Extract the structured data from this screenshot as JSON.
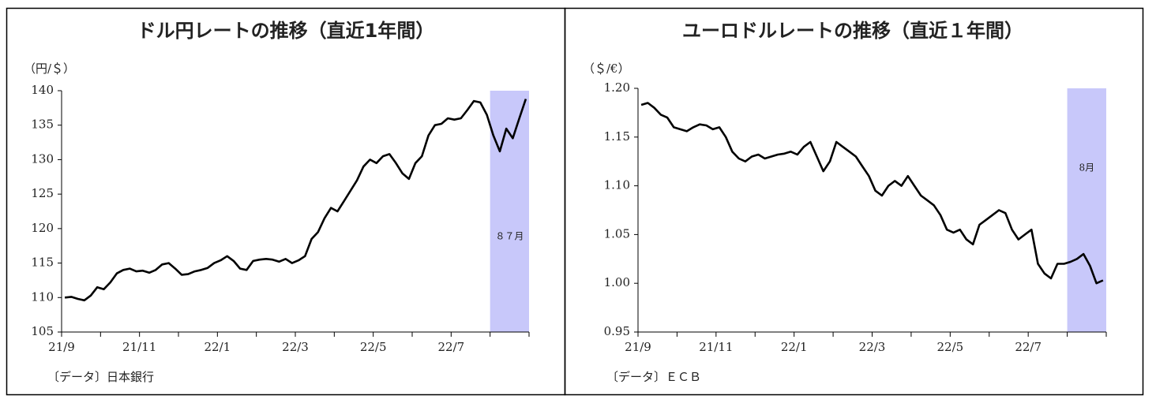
{
  "chart_data": [
    {
      "type": "line",
      "title": "ドル円レートの推移（直近1年間）",
      "ylabel": "（円/＄）",
      "note": "〔データ〕日本銀行",
      "categories": [
        "21/9",
        null,
        null,
        null,
        null,
        null,
        null,
        null,
        null,
        null,
        null,
        null,
        "21/11",
        null,
        null,
        null,
        null,
        null,
        null,
        null,
        null,
        null,
        null,
        null,
        "22/1",
        null,
        null,
        null,
        null,
        null,
        null,
        null,
        null,
        null,
        null,
        null,
        "22/3",
        null,
        null,
        null,
        null,
        null,
        null,
        null,
        null,
        null,
        null,
        null,
        "22/5",
        null,
        null,
        null,
        null,
        null,
        null,
        null,
        null,
        null,
        null,
        null,
        "22/7",
        null,
        null,
        null,
        null,
        null,
        null,
        null,
        null,
        null,
        null,
        null
      ],
      "values": [
        110.0,
        110.1,
        109.8,
        109.6,
        110.3,
        111.5,
        111.2,
        112.2,
        113.5,
        114.0,
        114.2,
        113.8,
        113.9,
        113.6,
        114.0,
        114.8,
        115.0,
        114.2,
        113.3,
        113.4,
        113.8,
        114.0,
        114.3,
        115.0,
        115.4,
        116.0,
        115.3,
        114.2,
        114.0,
        115.3,
        115.5,
        115.6,
        115.5,
        115.2,
        115.6,
        115.0,
        115.4,
        116.0,
        118.5,
        119.5,
        121.5,
        123.0,
        122.5,
        124.0,
        125.5,
        127.0,
        129.0,
        130.0,
        129.5,
        130.5,
        130.8,
        129.5,
        128.0,
        127.2,
        129.5,
        130.5,
        133.5,
        135.0,
        135.2,
        136.0,
        135.8,
        136.0,
        137.2,
        138.5,
        138.3,
        136.5,
        133.5,
        131.2,
        134.5,
        133.1,
        136.0,
        138.8
      ],
      "color": "#000000",
      "ylim": [
        105,
        140
      ],
      "yticks": [
        105,
        110,
        115,
        120,
        125,
        130,
        135,
        140
      ],
      "highlight": {
        "label": "８７月",
        "color": "#c8c8fa"
      }
    },
    {
      "type": "line",
      "title": "ユーロドルレートの推移（直近１年間）",
      "ylabel": "（＄/€）",
      "note": "〔データ〕ＥＣＢ",
      "categories": [
        "21/9",
        null,
        null,
        null,
        null,
        null,
        null,
        null,
        null,
        null,
        null,
        null,
        "21/11",
        null,
        null,
        null,
        null,
        null,
        null,
        null,
        null,
        null,
        null,
        null,
        "22/1",
        null,
        null,
        null,
        null,
        null,
        null,
        null,
        null,
        null,
        null,
        null,
        "22/3",
        null,
        null,
        null,
        null,
        null,
        null,
        null,
        null,
        null,
        null,
        null,
        "22/5",
        null,
        null,
        null,
        null,
        null,
        null,
        null,
        null,
        null,
        null,
        null,
        "22/7",
        null,
        null,
        null,
        null,
        null,
        null,
        null,
        null,
        null,
        null,
        null
      ],
      "values": [
        1.183,
        1.185,
        1.18,
        1.173,
        1.17,
        1.16,
        1.158,
        1.156,
        1.16,
        1.163,
        1.162,
        1.158,
        1.16,
        1.15,
        1.135,
        1.128,
        1.125,
        1.13,
        1.132,
        1.128,
        1.13,
        1.132,
        1.133,
        1.135,
        1.132,
        1.14,
        1.145,
        1.13,
        1.115,
        1.125,
        1.145,
        1.14,
        1.135,
        1.13,
        1.12,
        1.11,
        1.095,
        1.09,
        1.1,
        1.105,
        1.1,
        1.11,
        1.1,
        1.09,
        1.085,
        1.08,
        1.07,
        1.055,
        1.052,
        1.055,
        1.045,
        1.04,
        1.06,
        1.065,
        1.07,
        1.075,
        1.072,
        1.055,
        1.045,
        1.05,
        1.055,
        1.02,
        1.01,
        1.005,
        1.02,
        1.02,
        1.022,
        1.025,
        1.03,
        1.018,
        1.0,
        1.003
      ],
      "color": "#000000",
      "ylim": [
        0.95,
        1.2
      ],
      "yticks": [
        0.95,
        {
          "value": 1.0,
          "label": "1.00"
        },
        1.05,
        {
          "value": 1.1,
          "label": "1.10"
        },
        1.15,
        {
          "value": 1.2,
          "label": "1.20"
        }
      ],
      "highlight": {
        "label": "8月",
        "color": "#c8c8fa"
      }
    }
  ]
}
